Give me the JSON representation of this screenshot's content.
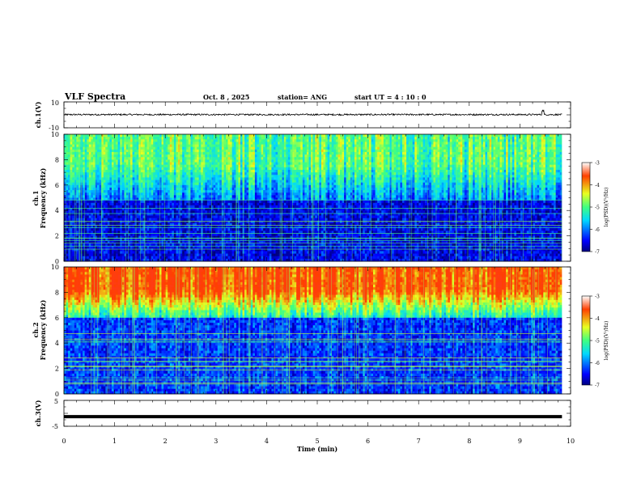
{
  "header": {
    "title": "VLF Spectra",
    "date": "Oct. 8 , 2025",
    "station": "station= ANG",
    "start": "start  UT =  4 : 10 : 0"
  },
  "chart_data": [
    {
      "type": "line",
      "panel": "ch.1(V)",
      "ylabel": "ch.1(V)",
      "ylim": [
        -10,
        10
      ],
      "yticks": [
        "10",
        "-10"
      ],
      "x_unit": "min",
      "xlim": [
        0,
        10
      ],
      "signal_level": 0.2,
      "signal_spread": 0.6,
      "spike_at": 9.45,
      "data_end": 9.83
    },
    {
      "type": "heatmap",
      "panel": "ch.1",
      "ylabel": "ch.1 Frequency (kHz)",
      "ylabel_top": "ch.1",
      "ylabel_main": "Frequency (kHz)",
      "xlim": [
        0,
        10
      ],
      "ylim": [
        0,
        10
      ],
      "yticks": [
        "0",
        "2",
        "4",
        "6",
        "8",
        "10"
      ],
      "colorbar": {
        "label": "log(PSD)(V²/Hz)",
        "ticks": [
          "-3",
          "-4",
          "-5",
          "-6",
          "-7"
        ],
        "range": [
          -7,
          -3
        ]
      },
      "background_level": -6.6,
      "upper_band_kHz": [
        4.8,
        10
      ],
      "upper_band_level": -5.0,
      "line_level": -5.2
    },
    {
      "type": "heatmap",
      "panel": "ch.2",
      "ylabel": "ch.2 Frequency (kHz)",
      "ylabel_top": "ch.2",
      "ylabel_main": "Frequency (kHz)",
      "xlim": [
        0,
        10
      ],
      "ylim": [
        0,
        10
      ],
      "yticks": [
        "0",
        "2",
        "4",
        "6",
        "8",
        "10"
      ],
      "colorbar": {
        "label": "log(PSD)(V²/Hz)",
        "ticks": [
          "-3",
          "-4",
          "-5",
          "-6",
          "-7"
        ],
        "range": [
          -7,
          -3
        ]
      },
      "background_level": -6.3,
      "upper_band_kHz": [
        6,
        10
      ],
      "upper_band_level": -3.6,
      "line_level": -5.0
    },
    {
      "type": "line",
      "panel": "ch.3(V)",
      "ylabel": "ch.3(V)",
      "ylim": [
        -5,
        5
      ],
      "yticks": [
        "5",
        "-5"
      ],
      "x": [
        0,
        9.83
      ],
      "y": [
        -1.3,
        -1.3
      ],
      "xlabel": "Time (min)",
      "xticks": [
        "0",
        "1",
        "2",
        "3",
        "4",
        "5",
        "6",
        "7",
        "8",
        "9",
        "10"
      ],
      "xlim": [
        0,
        10
      ]
    }
  ]
}
